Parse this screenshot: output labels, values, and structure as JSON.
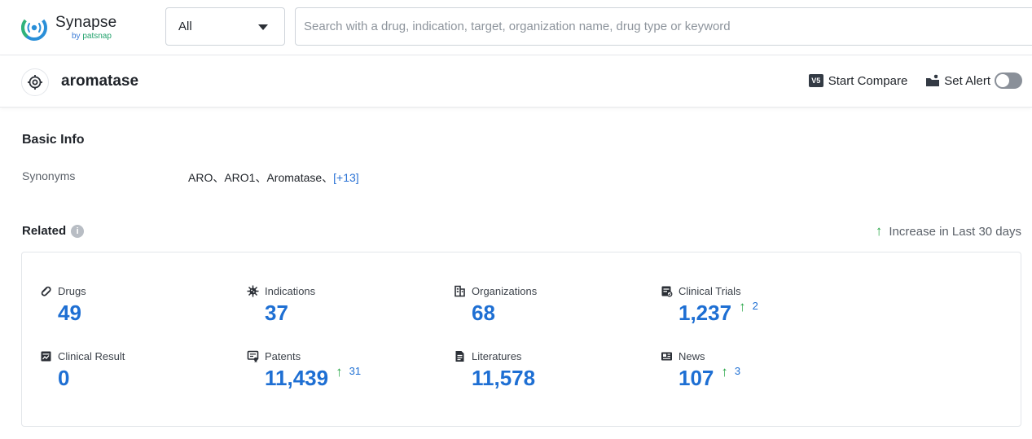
{
  "header": {
    "logo": {
      "name": "Synapse",
      "sub_by": "by",
      "sub_brand": "patsnap"
    },
    "type_select": {
      "value": "All"
    },
    "search": {
      "placeholder": "Search with a drug, indication, target, organization name, drug type or keyword"
    }
  },
  "target": {
    "title": "aromatase",
    "start_compare_label": "Start Compare",
    "compare_badge": "V5",
    "set_alert_label": "Set Alert",
    "alert_enabled": false
  },
  "basic_info": {
    "title": "Basic Info",
    "synonyms_label": "Synonyms",
    "synonyms_value": "ARO、ARO1、Aromatase、",
    "synonyms_more": "[+13]"
  },
  "related": {
    "title": "Related",
    "legend": "Increase in Last 30 days",
    "colors": {
      "value": "#1e6fd3",
      "increase_arrow": "#2ca84a"
    },
    "stats": [
      {
        "label": "Drugs",
        "icon": "pill-icon",
        "value": "49",
        "increase": ""
      },
      {
        "label": "Indications",
        "icon": "virus-icon",
        "value": "37",
        "increase": ""
      },
      {
        "label": "Organizations",
        "icon": "building-icon",
        "value": "68",
        "increase": ""
      },
      {
        "label": "Clinical Trials",
        "icon": "clipboard-icon",
        "value": "1,237",
        "increase": "2"
      },
      {
        "label": "Clinical Result",
        "icon": "result-icon",
        "value": "0",
        "increase": ""
      },
      {
        "label": "Patents",
        "icon": "patent-icon",
        "value": "11,439",
        "increase": "31"
      },
      {
        "label": "Literatures",
        "icon": "document-icon",
        "value": "11,578",
        "increase": ""
      },
      {
        "label": "News",
        "icon": "newspaper-icon",
        "value": "107",
        "increase": "3"
      }
    ]
  }
}
